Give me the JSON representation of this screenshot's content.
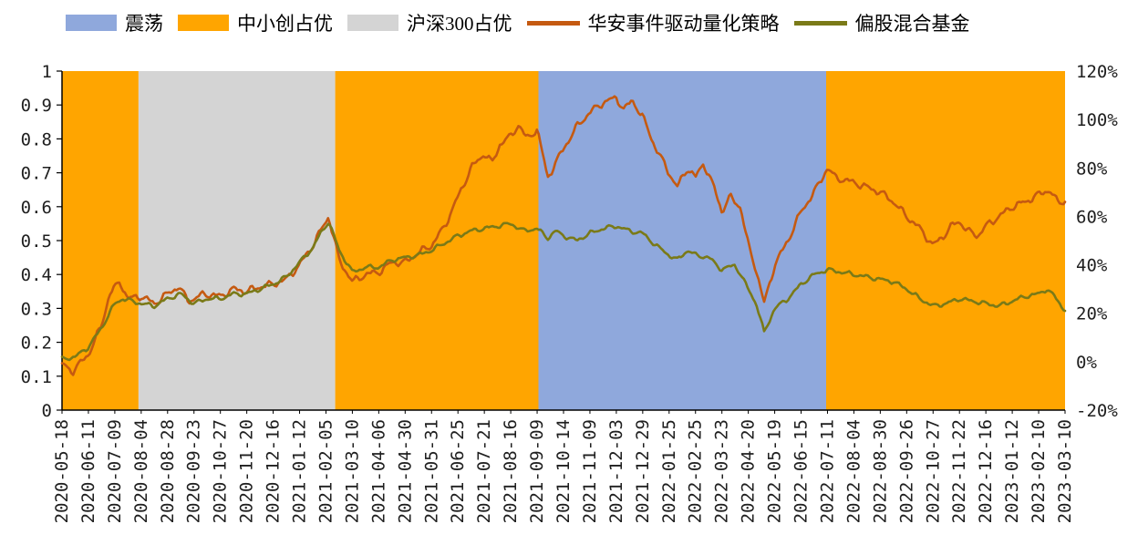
{
  "legend": {
    "items": [
      {
        "label": "震荡",
        "swatch": "rect",
        "color": "#8FA8DC"
      },
      {
        "label": "中小创占优",
        "swatch": "rect",
        "color": "#FFA500"
      },
      {
        "label": "沪深300占优",
        "swatch": "rect",
        "color": "#D4D4D4"
      },
      {
        "label": "华安事件驱动量化策略",
        "swatch": "line",
        "color": "#C55A11"
      },
      {
        "label": "偏股混合基金",
        "swatch": "line",
        "color": "#7A7A18"
      }
    ]
  },
  "chart_data": {
    "type": "line",
    "title": "",
    "xlabel": "",
    "ylabel": "",
    "grid": false,
    "legend_position": "top",
    "x_labels": [
      "2020-05-18",
      "2020-06-11",
      "2020-07-09",
      "2020-08-04",
      "2020-08-28",
      "2020-09-23",
      "2020-10-27",
      "2020-11-20",
      "2020-12-16",
      "2021-01-12",
      "2021-02-05",
      "2021-03-10",
      "2021-04-06",
      "2021-04-30",
      "2021-05-31",
      "2021-06-25",
      "2021-07-21",
      "2021-08-16",
      "2021-09-09",
      "2021-10-14",
      "2021-11-09",
      "2021-12-03",
      "2021-12-29",
      "2022-01-25",
      "2022-02-25",
      "2022-03-23",
      "2022-04-20",
      "2022-05-19",
      "2022-06-15",
      "2022-07-11",
      "2022-08-04",
      "2022-08-30",
      "2022-09-26",
      "2022-10-27",
      "2022-11-22",
      "2022-12-16",
      "2023-01-12",
      "2023-02-10",
      "2023-03-10"
    ],
    "left_axis": {
      "min": 0,
      "max": 1,
      "ticks": [
        {
          "v": 0,
          "label": "0"
        },
        {
          "v": 0.1,
          "label": "0.1"
        },
        {
          "v": 0.2,
          "label": "0.2"
        },
        {
          "v": 0.3,
          "label": "0.3"
        },
        {
          "v": 0.4,
          "label": "0.4"
        },
        {
          "v": 0.5,
          "label": "0.5"
        },
        {
          "v": 0.6,
          "label": "0.6"
        },
        {
          "v": 0.7,
          "label": "0.7"
        },
        {
          "v": 0.8,
          "label": "0.8"
        },
        {
          "v": 0.9,
          "label": "0.9"
        },
        {
          "v": 1,
          "label": "1"
        }
      ]
    },
    "right_axis": {
      "min": -20,
      "max": 120,
      "ticks": [
        {
          "v": -20,
          "label": "-20%"
        },
        {
          "v": 0,
          "label": "0%"
        },
        {
          "v": 20,
          "label": "20%"
        },
        {
          "v": 40,
          "label": "40%"
        },
        {
          "v": 60,
          "label": "60%"
        },
        {
          "v": 80,
          "label": "80%"
        },
        {
          "v": 100,
          "label": "100%"
        },
        {
          "v": 120,
          "label": "120%"
        }
      ]
    },
    "regions": [
      {
        "label": "中小创占优",
        "color": "#FFA500",
        "start": 0,
        "end": 2.9
      },
      {
        "label": "沪深300占优",
        "color": "#D4D4D4",
        "start": 2.9,
        "end": 10.35
      },
      {
        "label": "中小创占优",
        "color": "#FFA500",
        "start": 10.35,
        "end": 18.05
      },
      {
        "label": "震荡",
        "color": "#8FA8DC",
        "start": 18.05,
        "end": 28.95
      },
      {
        "label": "中小创占优",
        "color": "#FFA500",
        "start": 28.95,
        "end": 38
      }
    ],
    "series": [
      {
        "name": "华安事件驱动量化策略",
        "color": "#C55A11",
        "axis": "right",
        "unit": "%",
        "noise": 1.8,
        "points": [
          [
            0,
            -1
          ],
          [
            0.4,
            -4
          ],
          [
            1,
            3
          ],
          [
            1.5,
            15
          ],
          [
            1.8,
            28
          ],
          [
            2.2,
            33
          ],
          [
            2.5,
            26
          ],
          [
            3,
            27
          ],
          [
            3.5,
            24
          ],
          [
            4,
            28
          ],
          [
            4.4,
            31
          ],
          [
            4.8,
            25
          ],
          [
            5.4,
            28
          ],
          [
            6,
            27
          ],
          [
            6.5,
            30
          ],
          [
            7,
            29
          ],
          [
            7.5,
            31
          ],
          [
            8,
            32
          ],
          [
            8.5,
            34
          ],
          [
            9,
            40
          ],
          [
            9.5,
            48
          ],
          [
            9.8,
            54
          ],
          [
            10.1,
            60
          ],
          [
            10.5,
            42
          ],
          [
            11,
            33
          ],
          [
            11.5,
            36
          ],
          [
            12,
            37
          ],
          [
            12.5,
            41
          ],
          [
            13,
            41
          ],
          [
            13.5,
            45
          ],
          [
            14,
            48
          ],
          [
            14.5,
            56
          ],
          [
            15,
            68
          ],
          [
            15.5,
            80
          ],
          [
            16,
            86
          ],
          [
            16.3,
            82
          ],
          [
            16.6,
            90
          ],
          [
            17,
            93
          ],
          [
            17.3,
            98
          ],
          [
            17.6,
            92
          ],
          [
            18,
            96
          ],
          [
            18.4,
            76
          ],
          [
            19,
            88
          ],
          [
            19.5,
            97
          ],
          [
            20,
            103
          ],
          [
            20.5,
            107
          ],
          [
            21,
            109
          ],
          [
            21.3,
            104
          ],
          [
            21.6,
            108
          ],
          [
            22,
            101
          ],
          [
            22.5,
            88
          ],
          [
            23,
            78
          ],
          [
            23.3,
            72
          ],
          [
            23.7,
            80
          ],
          [
            24,
            76
          ],
          [
            24.3,
            82
          ],
          [
            24.7,
            72
          ],
          [
            25,
            62
          ],
          [
            25.3,
            68
          ],
          [
            25.7,
            64
          ],
          [
            26,
            48
          ],
          [
            26.3,
            38
          ],
          [
            26.6,
            24
          ],
          [
            27,
            40
          ],
          [
            27.5,
            50
          ],
          [
            28,
            62
          ],
          [
            28.5,
            70
          ],
          [
            29,
            80
          ],
          [
            29.3,
            76
          ],
          [
            30,
            74
          ],
          [
            30.5,
            72
          ],
          [
            31,
            70
          ],
          [
            31.5,
            66
          ],
          [
            32,
            60
          ],
          [
            32.5,
            55
          ],
          [
            33,
            48
          ],
          [
            33.4,
            52
          ],
          [
            33.7,
            56
          ],
          [
            34,
            58
          ],
          [
            34.3,
            54
          ],
          [
            34.7,
            52
          ],
          [
            35,
            56
          ],
          [
            35.5,
            60
          ],
          [
            36,
            64
          ],
          [
            36.5,
            66
          ],
          [
            37,
            69
          ],
          [
            37.4,
            71
          ],
          [
            37.7,
            66
          ],
          [
            38,
            66
          ]
        ]
      },
      {
        "name": "偏股混合基金",
        "color": "#7A7A18",
        "axis": "right",
        "unit": "%",
        "noise": 1.1,
        "points": [
          [
            0,
            1
          ],
          [
            0.5,
            2
          ],
          [
            1,
            6
          ],
          [
            1.5,
            14
          ],
          [
            2,
            24
          ],
          [
            2.3,
            26
          ],
          [
            3,
            24
          ],
          [
            3.5,
            23
          ],
          [
            4,
            26
          ],
          [
            4.5,
            28
          ],
          [
            5,
            24
          ],
          [
            5.5,
            26
          ],
          [
            6,
            26
          ],
          [
            6.5,
            28
          ],
          [
            7,
            28
          ],
          [
            7.5,
            30
          ],
          [
            8,
            32
          ],
          [
            8.5,
            35
          ],
          [
            9,
            41
          ],
          [
            9.5,
            47
          ],
          [
            9.8,
            53
          ],
          [
            10.1,
            58
          ],
          [
            10.5,
            46
          ],
          [
            11,
            37
          ],
          [
            11.5,
            39
          ],
          [
            12,
            39
          ],
          [
            12.5,
            42
          ],
          [
            13,
            43
          ],
          [
            13.5,
            44
          ],
          [
            14,
            46
          ],
          [
            14.5,
            49
          ],
          [
            15,
            52
          ],
          [
            15.5,
            54
          ],
          [
            16,
            55
          ],
          [
            16.5,
            56
          ],
          [
            17,
            57
          ],
          [
            17.5,
            54
          ],
          [
            18,
            55
          ],
          [
            18.4,
            51
          ],
          [
            18.7,
            54
          ],
          [
            19,
            52
          ],
          [
            19.5,
            50
          ],
          [
            20,
            53
          ],
          [
            20.5,
            55
          ],
          [
            21,
            56
          ],
          [
            21.5,
            54
          ],
          [
            22,
            53
          ],
          [
            22.5,
            48
          ],
          [
            23,
            44
          ],
          [
            23.3,
            42
          ],
          [
            23.7,
            46
          ],
          [
            24,
            44
          ],
          [
            24.5,
            43
          ],
          [
            25,
            38
          ],
          [
            25.5,
            40
          ],
          [
            26,
            30
          ],
          [
            26.3,
            24
          ],
          [
            26.6,
            12
          ],
          [
            27,
            22
          ],
          [
            27.5,
            26
          ],
          [
            28,
            32
          ],
          [
            28.5,
            36
          ],
          [
            29,
            38
          ],
          [
            29.5,
            37
          ],
          [
            30,
            36
          ],
          [
            30.5,
            35
          ],
          [
            31,
            34
          ],
          [
            31.5,
            33
          ],
          [
            32,
            30
          ],
          [
            32.5,
            26
          ],
          [
            33,
            23
          ],
          [
            33.5,
            24
          ],
          [
            34,
            26
          ],
          [
            34.5,
            25
          ],
          [
            35,
            24
          ],
          [
            35.5,
            23
          ],
          [
            36,
            25
          ],
          [
            36.5,
            27
          ],
          [
            37,
            28
          ],
          [
            37.3,
            30
          ],
          [
            37.6,
            27
          ],
          [
            38,
            21
          ]
        ]
      }
    ]
  }
}
